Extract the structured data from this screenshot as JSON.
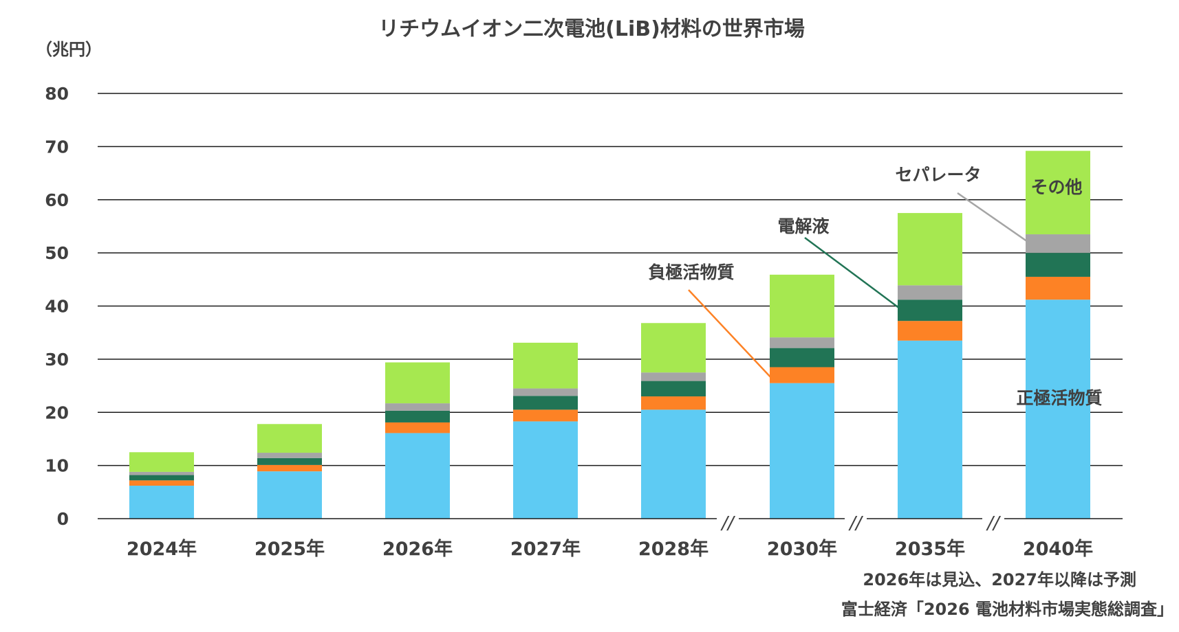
{
  "chart_data": {
    "type": "bar",
    "stacked": true,
    "title": "リチウムイオン二次電池(LiB)材料の世界市場",
    "unit_label": "（兆円）",
    "ylim": [
      0,
      80
    ],
    "yticks": [
      0,
      10,
      20,
      30,
      40,
      50,
      60,
      70,
      80
    ],
    "grid": true,
    "categories": [
      "2024年",
      "2025年",
      "2026年",
      "2027年",
      "2028年",
      "2030年",
      "2035年",
      "2040年"
    ],
    "axis_break_marks": "//",
    "series": [
      {
        "name": "正極活物質",
        "color": "#5ecbf3",
        "values": [
          6.2,
          8.9,
          16.1,
          18.3,
          20.5,
          25.5,
          33.5,
          41.2
        ]
      },
      {
        "name": "負極活物質",
        "color": "#fd8225",
        "values": [
          1.0,
          1.2,
          2.0,
          2.2,
          2.5,
          3.0,
          3.7,
          4.3
        ]
      },
      {
        "name": "電解液",
        "color": "#217455",
        "values": [
          1.0,
          1.3,
          2.2,
          2.6,
          2.9,
          3.6,
          4.0,
          4.5
        ]
      },
      {
        "name": "セパレータ",
        "color": "#a5a5a5",
        "values": [
          0.6,
          1.0,
          1.4,
          1.4,
          1.6,
          2.0,
          2.7,
          3.5
        ]
      },
      {
        "name": "その他",
        "color": "#a6e850",
        "values": [
          3.7,
          5.4,
          7.7,
          8.6,
          9.3,
          11.8,
          13.6,
          15.7
        ]
      }
    ],
    "notes": [
      "2026年は見込、2027年以降は予測",
      "富士経済「2026 電池材料市場実態総調査」"
    ]
  }
}
